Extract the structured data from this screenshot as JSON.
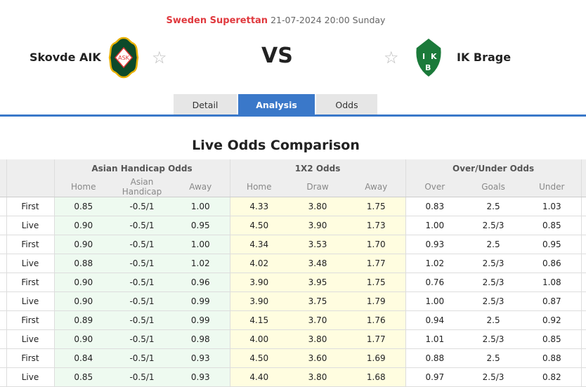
{
  "match": {
    "league": "Sweden Superettan",
    "datetime": "21-07-2024 20:00 Sunday",
    "home": "Skovde AIK",
    "away": "IK Brage",
    "vs": "VS",
    "home_logo_text": "ASK",
    "away_logo_text": "IKB"
  },
  "tabs": [
    {
      "label": "Detail"
    },
    {
      "label": "Analysis",
      "active": true
    },
    {
      "label": "Odds"
    }
  ],
  "section_title": "Live Odds Comparison",
  "table": {
    "groups": [
      "Asian Handicap Odds",
      "1X2 Odds",
      "Over/Under Odds"
    ],
    "subheaders": [
      "Home",
      "Asian Handicap",
      "Away",
      "Home",
      "Draw",
      "Away",
      "Over",
      "Goals",
      "Under"
    ],
    "rows": [
      [
        "First",
        "0.85",
        "-0.5/1",
        "1.00",
        "4.33",
        "3.80",
        "1.75",
        "0.83",
        "2.5",
        "1.03"
      ],
      [
        "Live",
        "0.90",
        "-0.5/1",
        "0.95",
        "4.50",
        "3.90",
        "1.73",
        "1.00",
        "2.5/3",
        "0.85"
      ],
      [
        "First",
        "0.90",
        "-0.5/1",
        "1.00",
        "4.34",
        "3.53",
        "1.70",
        "0.93",
        "2.5",
        "0.95"
      ],
      [
        "Live",
        "0.88",
        "-0.5/1",
        "1.02",
        "4.02",
        "3.48",
        "1.77",
        "1.02",
        "2.5/3",
        "0.86"
      ],
      [
        "First",
        "0.90",
        "-0.5/1",
        "0.96",
        "3.90",
        "3.95",
        "1.75",
        "0.76",
        "2.5/3",
        "1.08"
      ],
      [
        "Live",
        "0.90",
        "-0.5/1",
        "0.99",
        "3.90",
        "3.75",
        "1.79",
        "1.00",
        "2.5/3",
        "0.87"
      ],
      [
        "First",
        "0.89",
        "-0.5/1",
        "0.99",
        "4.15",
        "3.70",
        "1.76",
        "0.94",
        "2.5",
        "0.92"
      ],
      [
        "Live",
        "0.90",
        "-0.5/1",
        "0.98",
        "4.00",
        "3.80",
        "1.77",
        "1.01",
        "2.5/3",
        "0.85"
      ],
      [
        "First",
        "0.84",
        "-0.5/1",
        "0.93",
        "4.50",
        "3.60",
        "1.69",
        "0.88",
        "2.5",
        "0.88"
      ],
      [
        "Live",
        "0.85",
        "-0.5/1",
        "0.93",
        "4.40",
        "3.80",
        "1.68",
        "0.97",
        "2.5/3",
        "0.82"
      ]
    ]
  },
  "colors": {
    "accent": "#3a78c9",
    "league": "#e0393e",
    "ah_bg": "#eefaf0",
    "x12_bg": "#fffde0"
  }
}
